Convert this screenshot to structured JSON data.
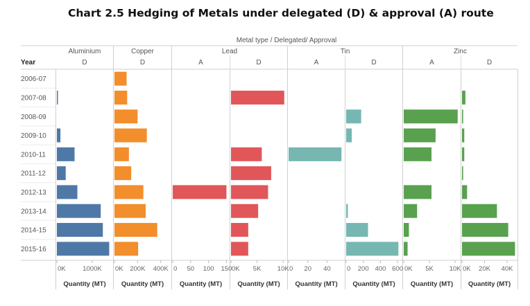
{
  "chart_data": {
    "type": "bar",
    "title": "Chart 2.5 Hedging of Metals under delegated (D) & approval (A) route",
    "header_title": "Metal type / Delegated/ Approval",
    "row_header": "Year",
    "categories": [
      "2006-07",
      "2007-08",
      "2008-09",
      "2009-10",
      "2010-11",
      "2011-12",
      "2012-13",
      "2013-14",
      "2014-15",
      "2015-16"
    ],
    "panels": [
      {
        "metal": "Aluminium",
        "route": "D",
        "color": "#4e79a7",
        "xlim": [
          0,
          1550000
        ],
        "ticks": [
          0,
          1000000
        ],
        "tick_labels": [
          "0K",
          "1000K"
        ],
        "xlabel": "Quantity (MT)",
        "values": [
          0,
          20000,
          0,
          100000,
          500000,
          250000,
          580000,
          1240000,
          1300000,
          1480000
        ]
      },
      {
        "metal": "Copper",
        "route": "D",
        "color": "#f28e2b",
        "xlim": [
          0,
          480000
        ],
        "ticks": [
          0,
          200000,
          400000
        ],
        "tick_labels": [
          "0K",
          "200K",
          "400K"
        ],
        "xlabel": "Quantity (MT)",
        "values": [
          105000,
          110000,
          200000,
          280000,
          125000,
          145000,
          250000,
          270000,
          370000,
          205000
        ]
      },
      {
        "metal": "Lead",
        "route": "A",
        "color": "#e15759",
        "xlim": [
          0,
          155
        ],
        "ticks": [
          0,
          50,
          100,
          150
        ],
        "tick_labels": [
          "0",
          "50",
          "100",
          "150"
        ],
        "xlabel": "Quantity (MT)",
        "values": [
          0,
          0,
          0,
          0,
          0,
          0,
          150,
          0,
          0,
          0
        ]
      },
      {
        "metal": "Lead",
        "route": "D",
        "color": "#e15759",
        "xlim": [
          0,
          10500
        ],
        "ticks": [
          0,
          5000,
          10000
        ],
        "tick_labels": [
          "0K",
          "5K",
          "10K"
        ],
        "xlabel": "Quantity (MT)",
        "values": [
          0,
          10200,
          0,
          0,
          5900,
          7700,
          7100,
          5200,
          3300,
          3300
        ]
      },
      {
        "metal": "Tin",
        "route": "A",
        "color": "#76b7b2",
        "xlim": [
          0,
          57
        ],
        "ticks": [
          0,
          20,
          40
        ],
        "tick_labels": [
          "0",
          "20",
          "40"
        ],
        "xlabel": "Quantity (MT)",
        "values": [
          0,
          0,
          0,
          0,
          55,
          0,
          0,
          0,
          0,
          0
        ]
      },
      {
        "metal": "Tin",
        "route": "D",
        "color": "#76b7b2",
        "xlim": [
          0,
          640
        ],
        "ticks": [
          0,
          200,
          400,
          600
        ],
        "tick_labels": [
          "0",
          "200",
          "400",
          "600"
        ],
        "xlabel": "Quantity (MT)",
        "values": [
          0,
          0,
          175,
          65,
          0,
          0,
          0,
          20,
          255,
          610
        ]
      },
      {
        "metal": "Zinc",
        "route": "A",
        "color": "#59a14f",
        "xlim": [
          0,
          10800
        ],
        "ticks": [
          0,
          5000,
          10000
        ],
        "tick_labels": [
          "0K",
          "5K",
          "10K"
        ],
        "xlabel": "Quantity (MT)",
        "values": [
          0,
          0,
          10500,
          6200,
          5400,
          0,
          5400,
          2600,
          1000,
          750
        ]
      },
      {
        "metal": "Zinc",
        "route": "D",
        "color": "#59a14f",
        "xlim": [
          0,
          48000
        ],
        "ticks": [
          0,
          20000,
          40000
        ],
        "tick_labels": [
          "0K",
          "20K",
          "40K"
        ],
        "xlabel": "Quantity (MT)",
        "values": [
          0,
          3000,
          1000,
          2000,
          2000,
          1000,
          4500,
          31000,
          41000,
          47000
        ]
      }
    ],
    "grid": false,
    "legend": "none"
  }
}
